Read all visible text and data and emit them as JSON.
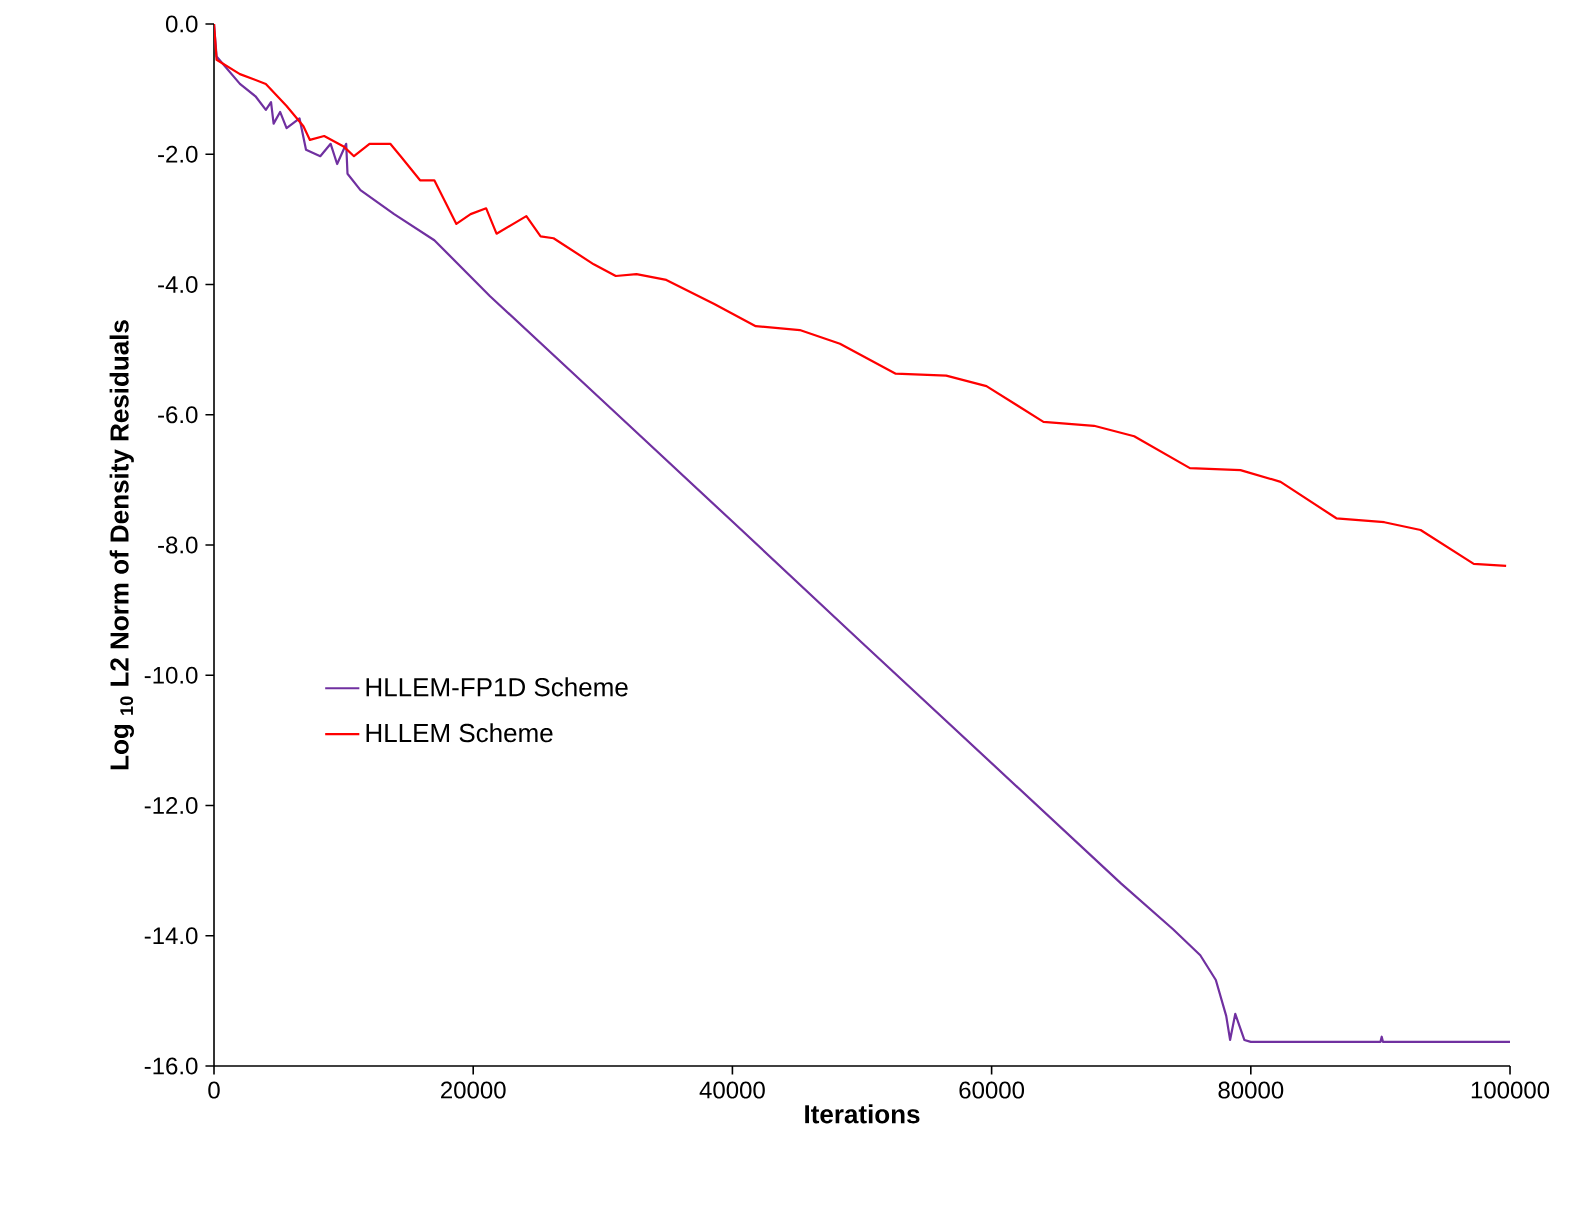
{
  "chart_data": {
    "type": "line",
    "xlabel": "Iterations",
    "ylabel": "Log $_{10}$ L2 Norm of Density Residuals",
    "xlim": [
      0,
      100000
    ],
    "ylim": [
      -16,
      0
    ],
    "xticks": [
      0,
      20000,
      40000,
      60000,
      80000,
      100000
    ],
    "yticks": [
      {
        "value": 0,
        "label": "0.0"
      },
      {
        "value": -2,
        "label": "-2.0"
      },
      {
        "value": -4,
        "label": "-4.0"
      },
      {
        "value": -6,
        "label": "-6.0"
      },
      {
        "value": -8,
        "label": "-8.0"
      },
      {
        "value": -10,
        "label": "-10.0"
      },
      {
        "value": -12,
        "label": "-12.0"
      },
      {
        "value": -14,
        "label": "-14.0"
      },
      {
        "value": -16,
        "label": "-16.0"
      }
    ],
    "grid": false,
    "legend": "bottom left",
    "marker": "none",
    "line_style": "solid",
    "series": [
      {
        "name": "HLLEM-FP1D Scheme",
        "color": "#7030a0",
        "x": [
          0,
          200,
          2000,
          3200,
          4000,
          4400,
          4600,
          5100,
          5600,
          6600,
          7100,
          8200,
          9000,
          9500,
          10200,
          10300,
          11300,
          13900,
          17000,
          21300,
          29800,
          40000,
          50000,
          60000,
          70000,
          74000,
          76100,
          77300,
          78100,
          78400,
          78800,
          79500,
          80000,
          90000,
          90100,
          90200,
          100000
        ],
        "values": [
          0,
          -0.5,
          -0.92,
          -1.11,
          -1.32,
          -1.2,
          -1.53,
          -1.35,
          -1.6,
          -1.45,
          -1.93,
          -2.03,
          -1.84,
          -2.15,
          -1.84,
          -2.3,
          -2.55,
          -2.92,
          -3.32,
          -4.18,
          -5.75,
          -7.64,
          -9.5,
          -11.35,
          -13.2,
          -13.9,
          -14.3,
          -14.68,
          -15.23,
          -15.6,
          -15.2,
          -15.6,
          -15.63,
          -15.63,
          -15.55,
          -15.63,
          -15.63
        ]
      },
      {
        "name": "HLLEM Scheme",
        "color": "#ff0000",
        "x": [
          0,
          200,
          2000,
          4000,
          5600,
          6900,
          7400,
          8500,
          10000,
          10800,
          12000,
          13600,
          14400,
          15900,
          17000,
          18700,
          19800,
          21000,
          21800,
          24100,
          25200,
          26200,
          29300,
          31000,
          32600,
          34900,
          38600,
          41800,
          45200,
          48300,
          52600,
          56500,
          59600,
          64000,
          67900,
          71000,
          75300,
          79200,
          82300,
          86600,
          90300,
          93100,
          97200,
          99700
        ],
        "values": [
          0,
          -0.55,
          -0.77,
          -0.92,
          -1.26,
          -1.57,
          -1.78,
          -1.72,
          -1.88,
          -2.03,
          -1.84,
          -1.84,
          -2.03,
          -2.4,
          -2.4,
          -3.07,
          -2.92,
          -2.83,
          -3.22,
          -2.95,
          -3.26,
          -3.29,
          -3.69,
          -3.87,
          -3.84,
          -3.93,
          -4.3,
          -4.64,
          -4.7,
          -4.91,
          -5.37,
          -5.4,
          -5.56,
          -6.11,
          -6.17,
          -6.33,
          -6.82,
          -6.85,
          -7.03,
          -7.59,
          -7.65,
          -7.77,
          -8.29,
          -8.32
        ]
      }
    ]
  }
}
